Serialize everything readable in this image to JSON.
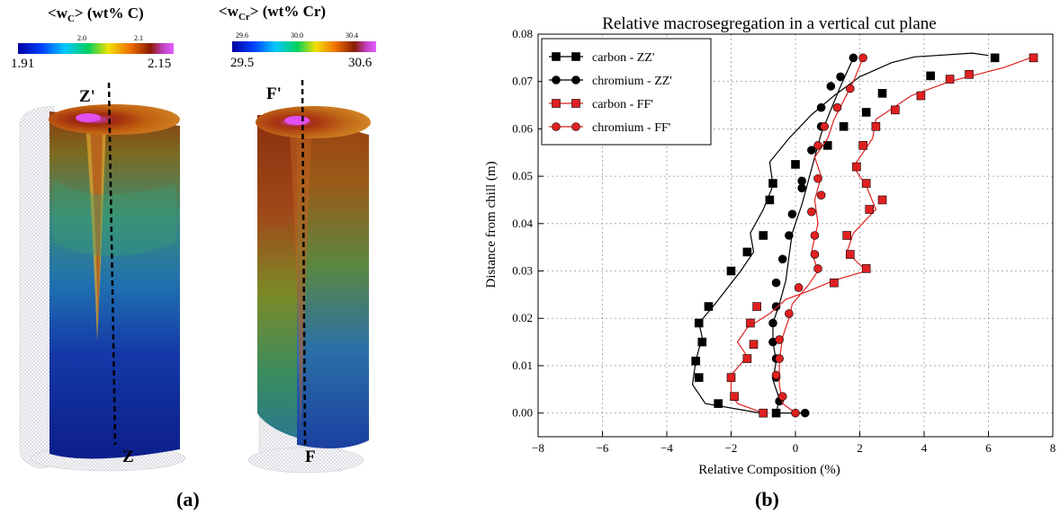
{
  "panel_a": {
    "label": "(a)",
    "left": {
      "title_main": "<w",
      "title_sub": "C",
      "title_rest": "> (wt% C)",
      "min": "1.91",
      "max": "2.15",
      "ticks": [
        "2.0",
        "2.1"
      ],
      "cut_top": "Z'",
      "cut_bottom": "Z"
    },
    "right": {
      "title_main": "<w",
      "title_sub": "Cr",
      "title_rest": "> (wt% Cr)",
      "min": "29.5",
      "max": "30.6",
      "ticks": [
        "29.6",
        "30.0",
        "30.4"
      ],
      "cut_top": "F'",
      "cut_bottom": "F"
    }
  },
  "panel_b": {
    "label": "(b)"
  },
  "chart_data": {
    "type": "line",
    "title": "Relative macrosegregation in a vertical cut plane",
    "xlabel": "Relative Composition (%)",
    "ylabel": "Distance from chill (m)",
    "xlim": [
      -8,
      8
    ],
    "ylim": [
      -0.005,
      0.08
    ],
    "xticks": [
      "−8",
      "−6",
      "−4",
      "−2",
      "0",
      "2",
      "4",
      "6",
      "8"
    ],
    "yticks": [
      "0.00",
      "0.01",
      "0.02",
      "0.03",
      "0.04",
      "0.05",
      "0.06",
      "0.07",
      "0.08"
    ],
    "grid": true,
    "legend_position": "top-left",
    "series": [
      {
        "name": "carbon - ZZ'",
        "color": "#000000",
        "marker": "square",
        "points": [
          [
            -1.1,
            0.0
          ],
          [
            -2.8,
            0.002
          ],
          [
            -3.2,
            0.006
          ],
          [
            -3.1,
            0.011
          ],
          [
            -2.9,
            0.016
          ],
          [
            -3.0,
            0.019
          ],
          [
            -2.5,
            0.023
          ],
          [
            -1.7,
            0.03
          ],
          [
            -1.3,
            0.034
          ],
          [
            -1.4,
            0.038
          ],
          [
            -1.0,
            0.043
          ],
          [
            -0.7,
            0.048
          ],
          [
            -0.8,
            0.053
          ],
          [
            -0.2,
            0.058
          ],
          [
            0.5,
            0.063
          ],
          [
            1.2,
            0.067
          ],
          [
            2.0,
            0.071
          ],
          [
            3.0,
            0.074
          ],
          [
            3.7,
            0.0752
          ],
          [
            5.5,
            0.076
          ],
          [
            6.0,
            0.0755
          ]
        ],
        "markers": [
          [
            -0.6,
            0.0
          ],
          [
            -2.4,
            0.002
          ],
          [
            -3.0,
            0.0075
          ],
          [
            -3.1,
            0.011
          ],
          [
            -2.9,
            0.015
          ],
          [
            -3.0,
            0.019
          ],
          [
            -2.7,
            0.0225
          ],
          [
            -2.0,
            0.03
          ],
          [
            -1.5,
            0.034
          ],
          [
            -1.0,
            0.0375
          ],
          [
            -0.8,
            0.045
          ],
          [
            -0.7,
            0.0485
          ],
          [
            0.0,
            0.0525
          ],
          [
            1.0,
            0.0565
          ],
          [
            1.5,
            0.0605
          ],
          [
            2.2,
            0.0635
          ],
          [
            2.7,
            0.0675
          ],
          [
            4.2,
            0.0712
          ],
          [
            6.2,
            0.075
          ]
        ]
      },
      {
        "name": "chromium - ZZ'",
        "color": "#000000",
        "marker": "circle",
        "points": [
          [
            0.3,
            0.0
          ],
          [
            -0.6,
            0.0
          ],
          [
            -0.5,
            0.003
          ],
          [
            -0.7,
            0.007
          ],
          [
            -0.6,
            0.011
          ],
          [
            -0.7,
            0.015
          ],
          [
            -0.7,
            0.019
          ],
          [
            -0.5,
            0.023
          ],
          [
            -0.3,
            0.028
          ],
          [
            -0.2,
            0.033
          ],
          [
            -0.1,
            0.038
          ],
          [
            0.2,
            0.044
          ],
          [
            0.4,
            0.049
          ],
          [
            0.6,
            0.054
          ],
          [
            0.8,
            0.059
          ],
          [
            1.1,
            0.064
          ],
          [
            1.4,
            0.069
          ],
          [
            1.8,
            0.075
          ]
        ],
        "markers": [
          [
            0.3,
            0.0
          ],
          [
            -0.5,
            0.0025
          ],
          [
            -0.6,
            0.0075
          ],
          [
            -0.6,
            0.0115
          ],
          [
            -0.7,
            0.015
          ],
          [
            -0.7,
            0.019
          ],
          [
            -0.6,
            0.0225
          ],
          [
            -0.6,
            0.0275
          ],
          [
            -0.4,
            0.0325
          ],
          [
            -0.2,
            0.0375
          ],
          [
            -0.1,
            0.042
          ],
          [
            0.2,
            0.0475
          ],
          [
            0.2,
            0.049
          ],
          [
            0.5,
            0.0555
          ],
          [
            0.8,
            0.0605
          ],
          [
            0.8,
            0.0645
          ],
          [
            1.1,
            0.069
          ],
          [
            1.4,
            0.071
          ],
          [
            1.8,
            0.075
          ]
        ]
      },
      {
        "name": "carbon - FF'",
        "color": "#e02020",
        "marker": "square",
        "points": [
          [
            -1.0,
            0.0
          ],
          [
            -1.8,
            0.002
          ],
          [
            -2.0,
            0.004
          ],
          [
            -2.0,
            0.008
          ],
          [
            -1.5,
            0.012
          ],
          [
            -1.8,
            0.015
          ],
          [
            -1.5,
            0.018
          ],
          [
            -0.8,
            0.021
          ],
          [
            -0.3,
            0.024
          ],
          [
            0.5,
            0.026
          ],
          [
            1.2,
            0.028
          ],
          [
            2.2,
            0.03
          ],
          [
            1.6,
            0.034
          ],
          [
            1.8,
            0.038
          ],
          [
            2.5,
            0.043
          ],
          [
            2.2,
            0.048
          ],
          [
            1.8,
            0.052
          ],
          [
            2.4,
            0.058
          ],
          [
            2.5,
            0.062
          ],
          [
            3.6,
            0.067
          ],
          [
            4.8,
            0.07
          ],
          [
            6.5,
            0.073
          ],
          [
            7.3,
            0.075
          ]
        ],
        "markers": [
          [
            -1.0,
            0.0
          ],
          [
            -1.9,
            0.0035
          ],
          [
            -2.0,
            0.0075
          ],
          [
            -1.5,
            0.0115
          ],
          [
            -1.3,
            0.0145
          ],
          [
            -1.4,
            0.019
          ],
          [
            -1.2,
            0.0225
          ],
          [
            1.2,
            0.0275
          ],
          [
            2.2,
            0.0305
          ],
          [
            1.7,
            0.0335
          ],
          [
            1.6,
            0.0375
          ],
          [
            2.3,
            0.043
          ],
          [
            2.7,
            0.045
          ],
          [
            2.2,
            0.0485
          ],
          [
            1.9,
            0.052
          ],
          [
            2.1,
            0.0565
          ],
          [
            2.5,
            0.0605
          ],
          [
            3.1,
            0.064
          ],
          [
            3.9,
            0.067
          ],
          [
            4.8,
            0.0705
          ],
          [
            5.4,
            0.0715
          ],
          [
            7.4,
            0.075
          ]
        ]
      },
      {
        "name": "chromium - FF'",
        "color": "#e02020",
        "marker": "circle",
        "points": [
          [
            0.0,
            0.0
          ],
          [
            -0.4,
            0.002
          ],
          [
            -0.5,
            0.006
          ],
          [
            -0.5,
            0.011
          ],
          [
            -0.4,
            0.016
          ],
          [
            -0.2,
            0.02
          ],
          [
            -0.1,
            0.023
          ],
          [
            0.4,
            0.027
          ],
          [
            0.7,
            0.03
          ],
          [
            0.5,
            0.034
          ],
          [
            0.7,
            0.04
          ],
          [
            0.6,
            0.045
          ],
          [
            0.8,
            0.05
          ],
          [
            0.6,
            0.054
          ],
          [
            1.0,
            0.058
          ],
          [
            1.2,
            0.062
          ],
          [
            1.5,
            0.066
          ],
          [
            1.8,
            0.07
          ],
          [
            2.1,
            0.075
          ]
        ],
        "markers": [
          [
            0.0,
            0.0
          ],
          [
            -0.4,
            0.0035
          ],
          [
            -0.6,
            0.008
          ],
          [
            -0.5,
            0.0115
          ],
          [
            -0.5,
            0.0155
          ],
          [
            -0.2,
            0.021
          ],
          [
            0.1,
            0.0265
          ],
          [
            0.7,
            0.0305
          ],
          [
            0.6,
            0.0335
          ],
          [
            0.6,
            0.0375
          ],
          [
            0.5,
            0.0425
          ],
          [
            0.8,
            0.046
          ],
          [
            0.7,
            0.0495
          ],
          [
            0.7,
            0.0565
          ],
          [
            0.9,
            0.0605
          ],
          [
            1.3,
            0.0645
          ],
          [
            1.7,
            0.0685
          ],
          [
            2.1,
            0.075
          ]
        ]
      }
    ]
  }
}
